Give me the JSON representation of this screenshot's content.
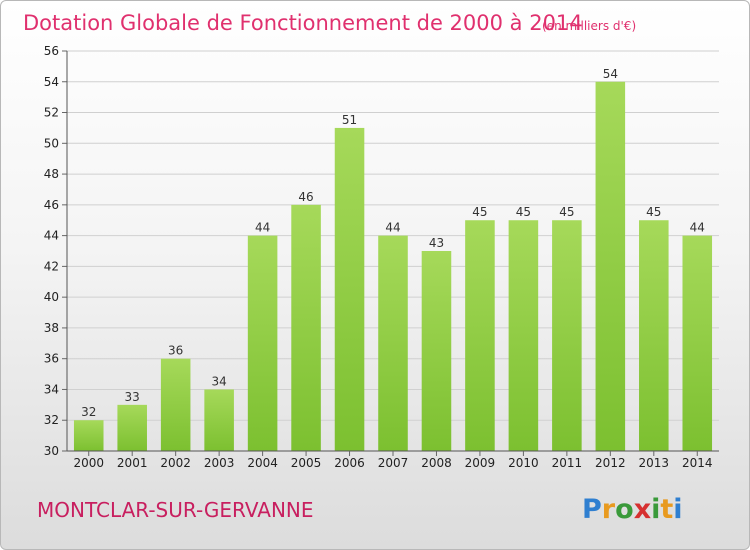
{
  "chart_data": {
    "type": "bar",
    "title": "Dotation Globale de Fonctionnement de 2000 à 2014",
    "subtitle": "(en milliers d'€)",
    "xlabel": "",
    "ylabel": "",
    "categories": [
      "2000",
      "2001",
      "2002",
      "2003",
      "2004",
      "2005",
      "2006",
      "2007",
      "2008",
      "2009",
      "2010",
      "2011",
      "2012",
      "2013",
      "2014"
    ],
    "values": [
      32,
      33,
      36,
      34,
      44,
      46,
      51,
      44,
      43,
      45,
      45,
      45,
      54,
      45,
      44
    ],
    "ylim": [
      30,
      56
    ],
    "ytick_step": 2,
    "grid": true,
    "data_labels": true,
    "bar_color": "#7cc030",
    "bar_color_light": "#a6d95a"
  },
  "footer": {
    "commune": "MONTCLAR-SUR-GERVANNE"
  },
  "logo": {
    "text": "Proxiti",
    "colors": [
      "#2f7fd0",
      "#e89a1f",
      "#3a9a3a",
      "#d63030",
      "#3a9a3a",
      "#e89a1f",
      "#2f7fd0"
    ]
  }
}
